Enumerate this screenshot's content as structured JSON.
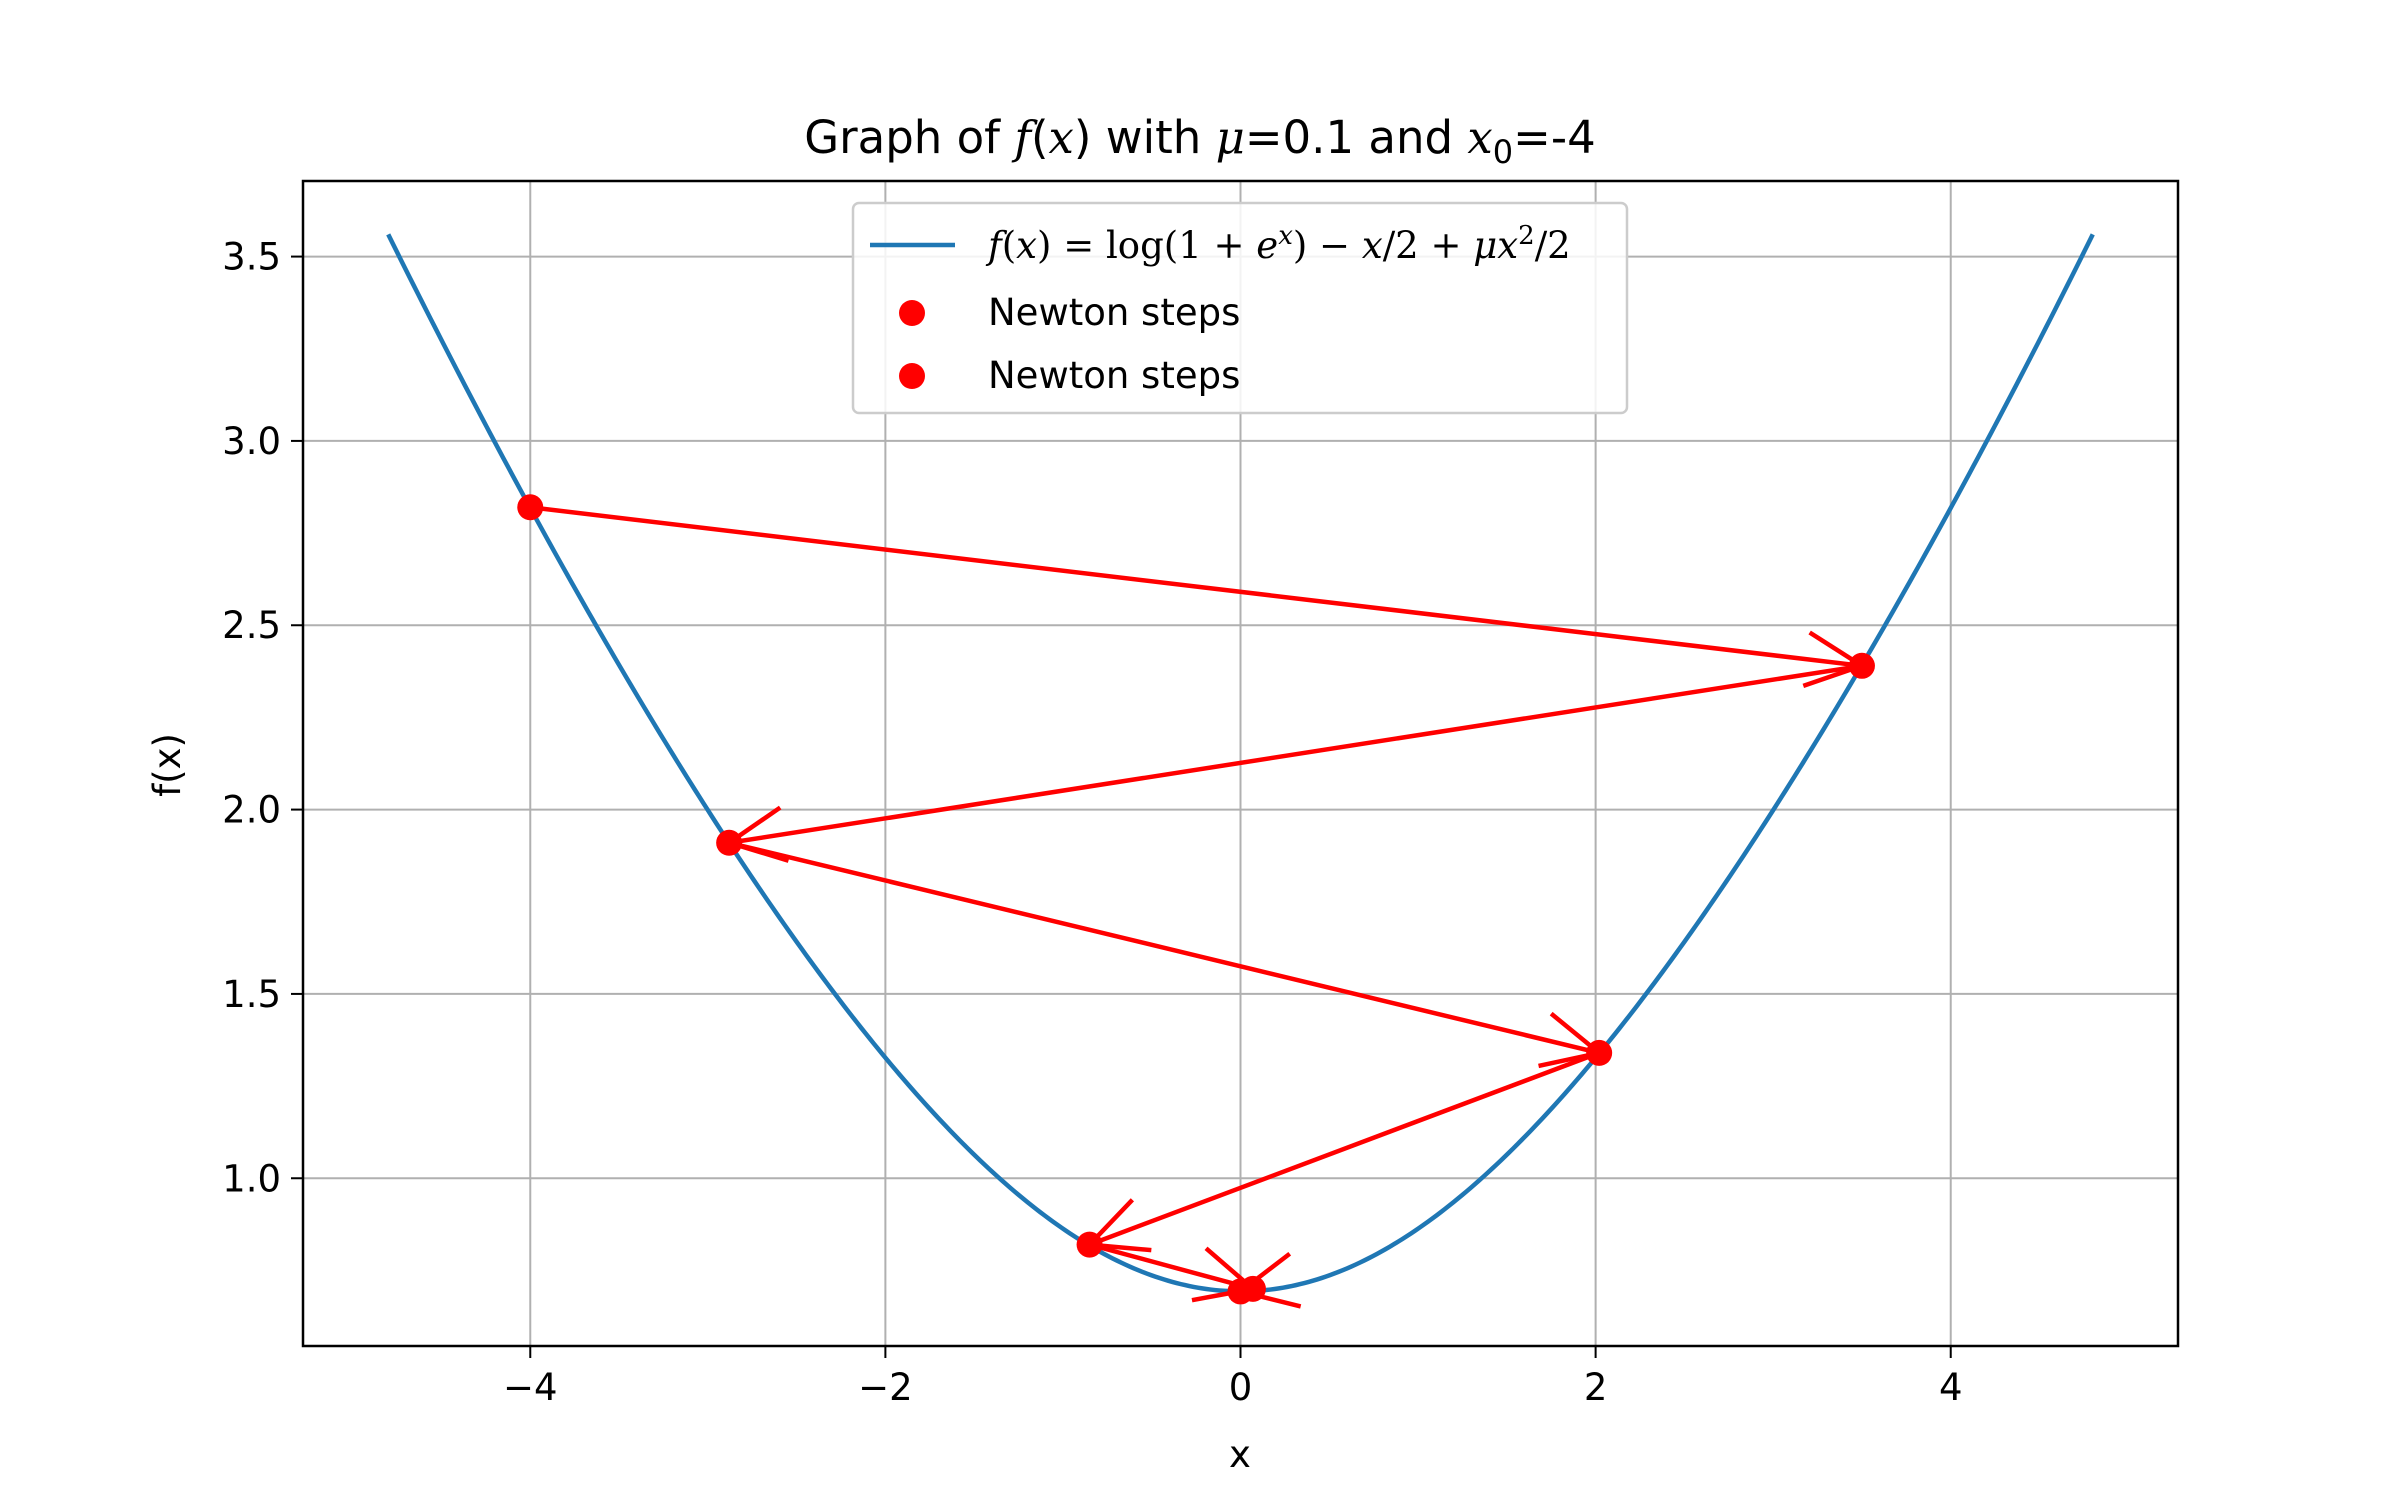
{
  "chart_data": {
    "type": "line",
    "title": {
      "prefix": "Graph of ",
      "func_name": "f",
      "func_open": "(",
      "func_var": "x",
      "func_close": ")",
      "middle": " with ",
      "mu_symbol": "μ",
      "mu_part": "=0.1 and ",
      "x0_symbol": "x",
      "x0_subscript": "0",
      "x0_part": "=-4"
    },
    "xlabel": "x",
    "ylabel": "f(x)",
    "xlim": [
      -5.28,
      5.28
    ],
    "ylim": [
      0.545,
      3.705
    ],
    "xticks": [
      {
        "value": -4,
        "label": "−4"
      },
      {
        "value": -2,
        "label": "−2"
      },
      {
        "value": 0,
        "label": "0"
      },
      {
        "value": 2,
        "label": "2"
      },
      {
        "value": 4,
        "label": "4"
      }
    ],
    "yticks": [
      {
        "value": 1.0,
        "label": "1.0"
      },
      {
        "value": 1.5,
        "label": "1.5"
      },
      {
        "value": 2.0,
        "label": "2.0"
      },
      {
        "value": 2.5,
        "label": "2.5"
      },
      {
        "value": 3.0,
        "label": "3.0"
      },
      {
        "value": 3.5,
        "label": "3.5"
      }
    ],
    "grid": true,
    "legend_position": "upper center",
    "function": {
      "mu": 0.1,
      "x_range": [
        -4.8,
        4.8
      ],
      "color": "#1f77b4"
    },
    "series": [
      {
        "type": "line",
        "label": {
          "f": "f",
          "open": "(",
          "x": "x",
          "close": ")",
          "eq": " = log(1 + ",
          "e": "e",
          "exp": "x",
          "rest": ") − ",
          "x2": "x",
          "div2": "/2 + ",
          "mu": "μ",
          "x3": "x",
          "sq": "2",
          "end": "/2"
        },
        "color": "#1f77b4"
      },
      {
        "type": "scatter",
        "name": "Newton steps",
        "color": "#ff0000",
        "points": [
          {
            "x": -4.0,
            "y": 2.82
          },
          {
            "x": 3.5,
            "y": 2.39
          },
          {
            "x": -2.88,
            "y": 1.91
          },
          {
            "x": 2.02,
            "y": 1.34
          },
          {
            "x": -0.85,
            "y": 0.82
          },
          {
            "x": 0.07,
            "y": 0.7
          },
          {
            "x": 0.0,
            "y": 0.693
          }
        ]
      },
      {
        "type": "scatter",
        "name": "Newton steps",
        "color": "#ff0000"
      }
    ],
    "arrows": {
      "color": "#ff0000",
      "steps": [
        {
          "from": [
            -4.0,
            2.82
          ],
          "to": [
            3.5,
            2.39
          ]
        },
        {
          "from": [
            3.5,
            2.39
          ],
          "to": [
            -2.88,
            1.91
          ]
        },
        {
          "from": [
            -2.88,
            1.91
          ],
          "to": [
            2.02,
            1.34
          ]
        },
        {
          "from": [
            2.02,
            1.34
          ],
          "to": [
            -0.85,
            0.82
          ]
        },
        {
          "from": [
            -0.85,
            0.82
          ],
          "to": [
            0.07,
            0.7
          ]
        },
        {
          "from": [
            0.07,
            0.7
          ],
          "to": [
            0.0,
            0.693
          ]
        }
      ]
    }
  }
}
